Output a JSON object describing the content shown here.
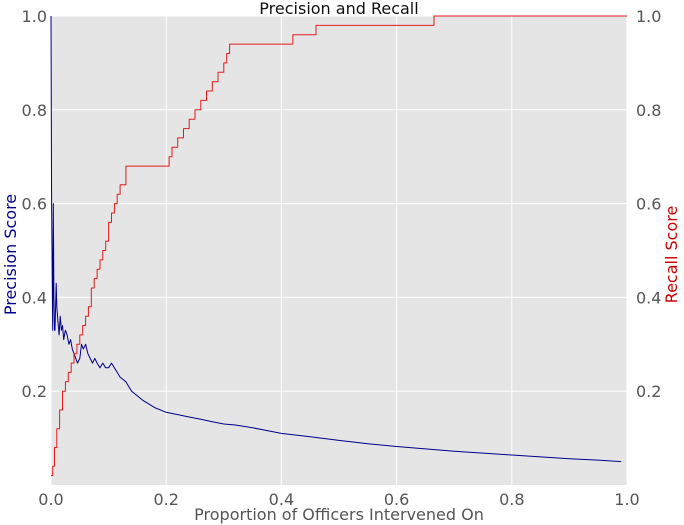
{
  "chart_data": {
    "type": "line",
    "title": "Precision and Recall",
    "xlabel": "Proportion of Officers Intervened On",
    "ylabel_left": "Precision Score",
    "ylabel_right": "Recall Score",
    "xlim": [
      0.0,
      1.0
    ],
    "ylim_left": [
      0.0,
      1.0
    ],
    "ylim_right": [
      0.0,
      1.0
    ],
    "x_ticks": [
      "0.0",
      "0.2",
      "0.4",
      "0.6",
      "0.8",
      "1.0"
    ],
    "y_ticks_left": [
      "0.2",
      "0.4",
      "0.6",
      "0.8",
      "1.0"
    ],
    "y_ticks_right": [
      "0.2",
      "0.4",
      "0.6",
      "0.8",
      "1.0"
    ],
    "grid": true,
    "background": "#e5e5e5",
    "colors": {
      "precision": "#00008b",
      "recall": "#e41a1c",
      "ylabel_left": "#00008b",
      "ylabel_right": "#cc0000"
    },
    "series": [
      {
        "axis": "left",
        "color": "#00008b",
        "x": [
          0.0,
          0.001,
          0.003,
          0.004,
          0.005,
          0.006,
          0.007,
          0.009,
          0.01,
          0.012,
          0.014,
          0.016,
          0.018,
          0.02,
          0.022,
          0.025,
          0.028,
          0.031,
          0.034,
          0.037,
          0.04,
          0.043,
          0.046,
          0.05,
          0.053,
          0.056,
          0.06,
          0.064,
          0.068,
          0.072,
          0.076,
          0.08,
          0.085,
          0.09,
          0.095,
          0.1,
          0.105,
          0.11,
          0.115,
          0.12,
          0.13,
          0.14,
          0.15,
          0.16,
          0.18,
          0.2,
          0.22,
          0.24,
          0.26,
          0.28,
          0.3,
          0.32,
          0.35,
          0.38,
          0.4,
          0.45,
          0.5,
          0.55,
          0.6,
          0.65,
          0.7,
          0.75,
          0.8,
          0.85,
          0.9,
          0.95,
          0.99
        ],
        "y": [
          1.0,
          0.6,
          0.33,
          0.6,
          0.4,
          0.33,
          0.33,
          0.43,
          0.38,
          0.35,
          0.32,
          0.36,
          0.33,
          0.34,
          0.31,
          0.33,
          0.32,
          0.3,
          0.31,
          0.29,
          0.28,
          0.27,
          0.26,
          0.27,
          0.3,
          0.29,
          0.3,
          0.28,
          0.27,
          0.26,
          0.27,
          0.26,
          0.25,
          0.26,
          0.25,
          0.25,
          0.26,
          0.25,
          0.24,
          0.23,
          0.22,
          0.2,
          0.19,
          0.18,
          0.165,
          0.155,
          0.15,
          0.145,
          0.14,
          0.135,
          0.13,
          0.128,
          0.122,
          0.115,
          0.11,
          0.103,
          0.095,
          0.088,
          0.082,
          0.077,
          0.072,
          0.068,
          0.064,
          0.06,
          0.056,
          0.053,
          0.05
        ]
      },
      {
        "axis": "right",
        "color": "#e41a1c",
        "x": [
          0.0,
          0.003,
          0.006,
          0.01,
          0.015,
          0.02,
          0.025,
          0.03,
          0.035,
          0.04,
          0.045,
          0.05,
          0.055,
          0.06,
          0.065,
          0.07,
          0.075,
          0.08,
          0.085,
          0.09,
          0.095,
          0.1,
          0.105,
          0.11,
          0.115,
          0.12,
          0.13,
          0.2,
          0.205,
          0.21,
          0.22,
          0.23,
          0.24,
          0.25,
          0.26,
          0.27,
          0.28,
          0.29,
          0.3,
          0.305,
          0.31,
          0.35,
          0.4,
          0.42,
          0.46,
          0.5,
          0.6,
          0.665,
          0.7,
          0.8,
          0.9,
          0.99,
          1.0
        ],
        "y": [
          0.02,
          0.04,
          0.08,
          0.12,
          0.16,
          0.2,
          0.22,
          0.24,
          0.26,
          0.28,
          0.3,
          0.32,
          0.34,
          0.36,
          0.38,
          0.42,
          0.44,
          0.46,
          0.48,
          0.5,
          0.52,
          0.56,
          0.58,
          0.6,
          0.62,
          0.64,
          0.68,
          0.68,
          0.7,
          0.72,
          0.74,
          0.76,
          0.78,
          0.8,
          0.82,
          0.84,
          0.86,
          0.88,
          0.9,
          0.92,
          0.94,
          0.94,
          0.94,
          0.96,
          0.98,
          0.98,
          0.98,
          1.0,
          1.0,
          1.0,
          1.0,
          1.0,
          1.0
        ]
      }
    ]
  }
}
